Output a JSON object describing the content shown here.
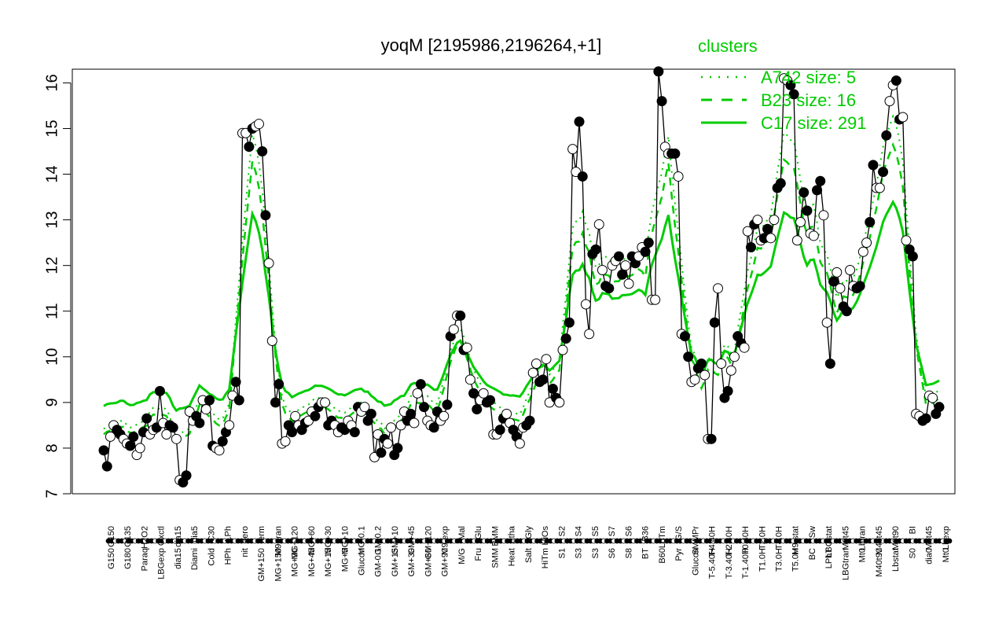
{
  "chart_data": {
    "type": "line",
    "title": "yoqM [2195986,2196264,+1]",
    "xlabel": "",
    "ylabel": "",
    "ylim": [
      7,
      16.3
    ],
    "yticks": [
      7,
      8,
      9,
      10,
      11,
      12,
      13,
      14,
      15,
      16
    ],
    "grid": false,
    "legend": {
      "title": "clusters",
      "position": "top-right",
      "entries": [
        {
          "label": "A742 size: 5",
          "style": "dotted"
        },
        {
          "label": "B23 size: 16",
          "style": "dashed"
        },
        {
          "label": "C17 size: 291",
          "style": "solid"
        }
      ]
    },
    "colors": {
      "cluster_lines": "#00cc00",
      "profile": "#000000"
    },
    "x_tick_labels": [
      "G150",
      "G180",
      "G135",
      "Paraq",
      "H2O2",
      "LBGexp",
      "Oxctl",
      "dia15",
      "Diami",
      "dia5",
      "Cold",
      "C90",
      "C30",
      "LPh",
      "HPh",
      "aero",
      "nit",
      "ferm",
      "GM+150",
      "M9-tran",
      "MG+150",
      "MG+120",
      "MG+90",
      "MG+60",
      "MG+45",
      "MG+30",
      "MG+15",
      "MG+10",
      "MG+5",
      "MG-0.1",
      "Glucon",
      "GM-0.2",
      "GM-0.1",
      "GM+10",
      "GM+15",
      "GM+30",
      "GM+45",
      "GM+60",
      "GM+90",
      "GM+120",
      "M9-exp",
      "M/G",
      "Mal",
      "Fru",
      "Glu",
      "SMM",
      "BMM",
      "Heat",
      "Etha",
      "Salt",
      "Gly",
      "HiTm",
      "HiOs",
      "S1",
      "S2",
      "S3",
      "S4",
      "S3",
      "S5",
      "S6",
      "S7",
      "S8",
      "S6",
      "BT",
      "B36",
      "B60",
      "LoTm",
      "Pyr",
      "G/S",
      "Glucon",
      "SMMPr",
      "T-5.40H",
      "T-4.40H",
      "T-3.40H",
      "T-2.40H",
      "T-1.40H",
      "T0.40H",
      "T1.0H",
      "T2.0H",
      "T3.0H",
      "T4.0H",
      "T5.0H",
      "M9-stat",
      "BC",
      "Sw",
      "LPhT",
      "LBGstat",
      "LBGtran",
      "M0t45",
      "Lbtran",
      "Mt0",
      "M40t45",
      "M40t90",
      "M0t90",
      "Lbstat",
      "BI",
      "S0",
      "M0t45",
      "dia0",
      "Mt0",
      "Lbexp",
      "Mt0"
    ],
    "x_tick_labels_upper": [
      "G150",
      "G135",
      "H2O2",
      "Oxctl",
      "dia15",
      "dia5",
      "C30",
      "LPh",
      "aero",
      "ferm",
      "M9-tran",
      "MG+120",
      "MG+60",
      "MG+30",
      "MG+10",
      "MG-0.1",
      "GM-0.2",
      "GM+10",
      "GM+45",
      "GM+120",
      "M9-exp",
      "Mal",
      "Glu",
      "BMM",
      "Etha",
      "Gly",
      "HiOs",
      "S2",
      "S4",
      "S5",
      "S7",
      "S6",
      "B36",
      "LoTm",
      "G/S",
      "SMMPr",
      "T-4.40H",
      "T-2.40H",
      "T0.40H",
      "T2.0H",
      "T4.0H",
      "M9-stat",
      "Sw",
      "LBGstat",
      "M0t45",
      "Lbtran",
      "M40t45",
      "M0t90",
      "BI",
      "M0t45",
      "Lbexp"
    ],
    "x_tick_labels_lower": [
      "G150",
      "G180",
      "Paraq",
      "LBGexp",
      "dia15",
      "Diami",
      "Cold",
      "HPh",
      "nit",
      "GM+150",
      "MG+150",
      "MG+90",
      "MG+45",
      "MG+15",
      "MG+5",
      "Glucon",
      "GM-0.1",
      "GM+15",
      "GM+30",
      "GM+60",
      "GM+90",
      "M/G",
      "Fru",
      "SMM",
      "Heat",
      "Salt",
      "HiTm",
      "S1",
      "S3",
      "S3",
      "S6",
      "S8",
      "BT",
      "B60",
      "Pyr",
      "Glucon",
      "T-5.40H",
      "T-3.40H",
      "T-1.40H",
      "T1.0H",
      "T3.0H",
      "T5.0H",
      "BC",
      "LPhT",
      "LBGtran",
      "Mt0",
      "M40t90",
      "Lbstat",
      "S0",
      "dia0",
      "Mt0"
    ],
    "profile_values": [
      7.95,
      7.6,
      8.25,
      8.5,
      8.4,
      8.3,
      8.2,
      8.1,
      8.05,
      8.25,
      7.85,
      8.0,
      8.35,
      8.65,
      8.3,
      8.4,
      8.45,
      9.25,
      8.55,
      8.3,
      8.5,
      8.45,
      8.2,
      7.3,
      7.25,
      7.4,
      8.8,
      8.6,
      8.7,
      8.55,
      9.05,
      8.85,
      9.05,
      8.05,
      8.0,
      7.95,
      8.15,
      8.35,
      8.5,
      9.15,
      9.45,
      9.05,
      14.9,
      14.9,
      14.6,
      15.0,
      15.05,
      15.1,
      14.5,
      13.1,
      12.05,
      10.35,
      9.0,
      9.4,
      8.1,
      8.15,
      8.5,
      8.35,
      8.7,
      8.5,
      8.4,
      8.55,
      8.6,
      8.8,
      8.7,
      8.9,
      9.0,
      9.0,
      8.5,
      8.6,
      8.5,
      8.35,
      8.45,
      8.4,
      8.6,
      8.5,
      8.35,
      8.9,
      8.8,
      8.9,
      8.6,
      8.75,
      7.8,
      8.3,
      7.9,
      8.2,
      8.1,
      8.45,
      7.85,
      8.0,
      8.5,
      8.8,
      8.6,
      8.75,
      8.55,
      9.2,
      9.4,
      8.9,
      8.6,
      8.5,
      8.45,
      8.8,
      8.6,
      8.7,
      8.95,
      10.45,
      10.6,
      10.9,
      10.9,
      10.15,
      10.2,
      9.5,
      9.2,
      8.85,
      9.05,
      9.2,
      9.0,
      9.05,
      8.3,
      8.3,
      8.4,
      8.65,
      8.75,
      8.55,
      8.4,
      8.25,
      8.1,
      8.45,
      8.5,
      8.6,
      9.65,
      9.85,
      9.45,
      9.5,
      9.95,
      9.0,
      9.3,
      9.1,
      9.0,
      10.15,
      10.4,
      10.75,
      14.55,
      14.05,
      15.15,
      13.95,
      11.15,
      10.5,
      12.25,
      12.35,
      12.9,
      11.9,
      11.55,
      11.5,
      12.0,
      12.1,
      12.2,
      11.8,
      12.0,
      11.6,
      12.2,
      12.05,
      12.2,
      12.4,
      12.3,
      12.5,
      11.25,
      11.25,
      16.25,
      15.6,
      14.6,
      14.45,
      14.45,
      14.45,
      13.95,
      10.5,
      10.45,
      10.0,
      9.45,
      9.5,
      9.75,
      9.85,
      9.6,
      8.2,
      8.2,
      10.75,
      11.5,
      9.85,
      9.1,
      9.25,
      9.7,
      10.0,
      10.45,
      10.3,
      10.2,
      12.75,
      12.4,
      12.9,
      13.0,
      12.55,
      12.6,
      12.8,
      12.6,
      13.0,
      13.7,
      13.8,
      16.1,
      16.05,
      15.95,
      15.75,
      12.55,
      12.95,
      13.6,
      13.2,
      12.7,
      12.65,
      13.65,
      13.85,
      13.1,
      10.75,
      9.85,
      11.65,
      11.85,
      11.5,
      11.1,
      11.0,
      11.9,
      11.55,
      11.5,
      11.55,
      12.3,
      12.5,
      12.95,
      14.2,
      13.7,
      13.7,
      14.05,
      14.85,
      15.6,
      15.95,
      16.05,
      15.2,
      15.25,
      12.55,
      12.35,
      12.2,
      8.75,
      8.7,
      8.6,
      8.65,
      9.15,
      9.1,
      8.75,
      8.9
    ]
  }
}
